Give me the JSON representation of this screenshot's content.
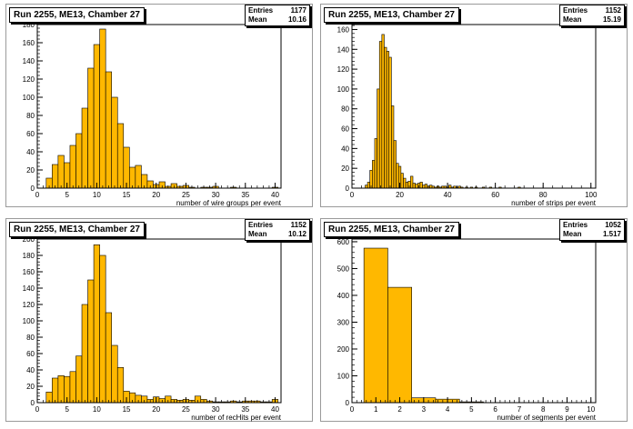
{
  "chart_data": [
    {
      "type": "bar",
      "title": "Run 2255, ME13, Chamber 27",
      "xlabel": "number of wire groups per event",
      "ylabel": "",
      "stats": [
        {
          "label": "Entries",
          "value": "1177"
        },
        {
          "label": "Mean",
          "value": "10.16"
        }
      ],
      "xlim": [
        0,
        41
      ],
      "ylim": [
        0,
        180
      ],
      "xticks": [
        0,
        5,
        10,
        15,
        20,
        25,
        30,
        35,
        40
      ],
      "yticks": [
        0,
        20,
        40,
        60,
        80,
        100,
        120,
        140,
        160,
        180
      ],
      "bin_width": 1,
      "x": [
        1,
        2,
        3,
        4,
        5,
        6,
        7,
        8,
        9,
        10,
        11,
        12,
        13,
        14,
        15,
        16,
        17,
        18,
        19,
        20,
        21,
        22,
        23,
        24,
        25,
        26,
        27,
        28,
        29,
        30,
        31,
        32,
        33,
        34,
        35,
        36,
        37,
        38,
        39,
        40
      ],
      "values": [
        0,
        11,
        26,
        36,
        28,
        47,
        60,
        88,
        132,
        158,
        175,
        128,
        100,
        71,
        45,
        23,
        25,
        15,
        8,
        4,
        7,
        2,
        5,
        2,
        3,
        1,
        0,
        1,
        1,
        2,
        0,
        0,
        1,
        0,
        0,
        0,
        0,
        0,
        0,
        1
      ],
      "color": "#ffb800"
    },
    {
      "type": "bar",
      "title": "Run 2255, ME13, Chamber 27",
      "xlabel": "number of strips per event",
      "ylabel": "",
      "stats": [
        {
          "label": "Entries",
          "value": "1152"
        },
        {
          "label": "Mean",
          "value": "15.19"
        }
      ],
      "xlim": [
        0,
        102
      ],
      "ylim": [
        0,
        165
      ],
      "xticks": [
        0,
        20,
        40,
        60,
        80,
        100
      ],
      "yticks": [
        0,
        20,
        40,
        60,
        80,
        100,
        120,
        140,
        160
      ],
      "bin_width": 1,
      "x": [
        6,
        7,
        8,
        9,
        10,
        11,
        12,
        13,
        14,
        15,
        16,
        17,
        18,
        19,
        20,
        21,
        22,
        23,
        24,
        25,
        26,
        27,
        28,
        29,
        30,
        31,
        32,
        33,
        34,
        35,
        36,
        37,
        38,
        39,
        40,
        41,
        42,
        43,
        44,
        45,
        46,
        48,
        50,
        52,
        55,
        58,
        62,
        70
      ],
      "values": [
        3,
        6,
        18,
        28,
        50,
        100,
        148,
        155,
        142,
        138,
        132,
        83,
        48,
        25,
        22,
        15,
        10,
        6,
        7,
        12,
        5,
        4,
        5,
        6,
        3,
        4,
        2,
        3,
        2,
        1,
        2,
        1,
        2,
        2,
        1,
        3,
        1,
        2,
        1,
        2,
        1,
        1,
        1,
        1,
        1,
        1,
        1,
        1
      ],
      "color": "#ffb800"
    },
    {
      "type": "bar",
      "title": "Run 2255, ME13, Chamber 27",
      "xlabel": "number of recHits per event",
      "ylabel": "",
      "stats": [
        {
          "label": "Entries",
          "value": "1152"
        },
        {
          "label": "Mean",
          "value": "10.12"
        }
      ],
      "xlim": [
        0,
        41
      ],
      "ylim": [
        0,
        200
      ],
      "xticks": [
        0,
        5,
        10,
        15,
        20,
        25,
        30,
        35,
        40
      ],
      "yticks": [
        0,
        20,
        40,
        60,
        80,
        100,
        120,
        140,
        160,
        180,
        200
      ],
      "bin_width": 1,
      "x": [
        1,
        2,
        3,
        4,
        5,
        6,
        7,
        8,
        9,
        10,
        11,
        12,
        13,
        14,
        15,
        16,
        17,
        18,
        19,
        20,
        21,
        22,
        23,
        24,
        25,
        26,
        27,
        28,
        29,
        30,
        31,
        32,
        33,
        34,
        35,
        36,
        37,
        38,
        39,
        40
      ],
      "values": [
        0,
        13,
        30,
        33,
        32,
        38,
        57,
        120,
        150,
        193,
        180,
        110,
        70,
        43,
        14,
        12,
        9,
        8,
        4,
        7,
        5,
        8,
        4,
        3,
        4,
        3,
        8,
        4,
        2,
        1,
        1,
        1,
        2,
        1,
        2,
        2,
        2,
        1,
        1,
        4
      ],
      "color": "#ffb800"
    },
    {
      "type": "bar",
      "title": "Run 2255, ME13, Chamber 27",
      "xlabel": "number of segments per event",
      "ylabel": "",
      "stats": [
        {
          "label": "Entries",
          "value": "1052"
        },
        {
          "label": "Mean",
          "value": "1.517"
        }
      ],
      "xlim": [
        0,
        10.2
      ],
      "ylim": [
        0,
        610
      ],
      "xticks": [
        0,
        1,
        2,
        3,
        4,
        5,
        6,
        7,
        8,
        9,
        10
      ],
      "yticks": [
        0,
        100,
        200,
        300,
        400,
        500,
        600
      ],
      "bin_width": 1,
      "x": [
        1,
        2,
        3,
        4,
        5
      ],
      "values": [
        576,
        430,
        18,
        13,
        3
      ],
      "color": "#ffb800"
    }
  ]
}
